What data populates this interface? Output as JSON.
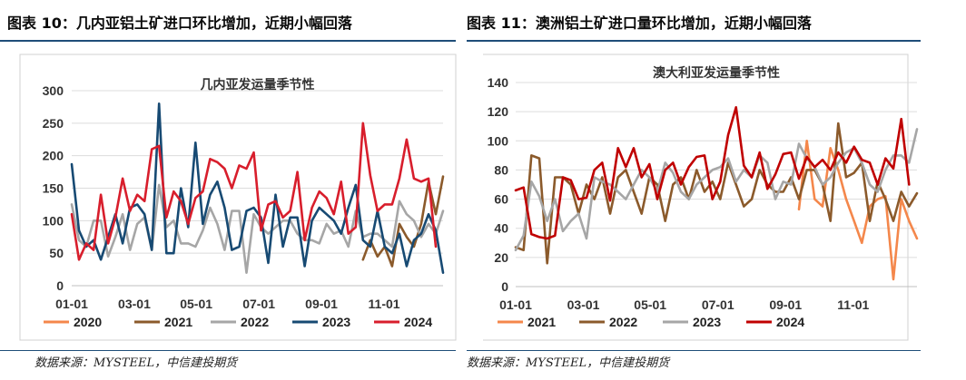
{
  "panels": [
    {
      "heading": "图表 10：几内亚铝土矿进口环比增加，近期小幅回落",
      "source": "数据来源：MYSTEEL，中信建投期货",
      "chart_data": {
        "type": "line",
        "title": "几内亚发运量季节性",
        "xlabel": "",
        "ylabel": "",
        "x_ticks": [
          "01-01",
          "03-01",
          "05-01",
          "07-01",
          "09-01",
          "11-01"
        ],
        "ylim": [
          0,
          300
        ],
        "y_ticks": [
          0,
          50,
          100,
          150,
          200,
          250,
          300
        ],
        "grid": true,
        "legend_position": "bottom",
        "series": [
          {
            "name": "2020",
            "color": "#f4874b",
            "x": [],
            "values": []
          },
          {
            "name": "2021",
            "color": "#8b5a2b",
            "x": [
              41,
              42,
              43,
              44,
              45,
              46,
              47,
              48,
              49,
              50,
              51,
              52
            ],
            "values": [
              40,
              70,
              45,
              60,
              30,
              95,
              75,
              60,
              95,
              160,
              110,
              168
            ]
          },
          {
            "name": "2022",
            "color": "#a6a6a6",
            "x": [
              1,
              2,
              3,
              4,
              5,
              6,
              7,
              8,
              9,
              10,
              11,
              12,
              13,
              14,
              15,
              16,
              17,
              18,
              19,
              20,
              21,
              22,
              23,
              24,
              25,
              26,
              27,
              28,
              29,
              30,
              31,
              32,
              33,
              34,
              35,
              36,
              37,
              38,
              39,
              40,
              41,
              42,
              43,
              44,
              45,
              46,
              47,
              48,
              49,
              50,
              51,
              52
            ],
            "values": [
              125,
              70,
              60,
              100,
              100,
              45,
              75,
              110,
              55,
              95,
              105,
              55,
              155,
              90,
              100,
              65,
              65,
              60,
              85,
              120,
              95,
              55,
              115,
              115,
              20,
              110,
              90,
              80,
              90,
              100,
              100,
              80,
              70,
              70,
              65,
              95,
              80,
              85,
              60,
              115,
              75,
              80,
              80,
              70,
              60,
              130,
              110,
              100,
              75,
              95,
              80,
              115
            ]
          },
          {
            "name": "2023",
            "color": "#174a73",
            "x": [
              1,
              2,
              3,
              4,
              5,
              6,
              7,
              8,
              9,
              10,
              11,
              12,
              13,
              14,
              15,
              16,
              17,
              18,
              19,
              20,
              21,
              22,
              23,
              24,
              25,
              26,
              27,
              28,
              29,
              30,
              31,
              32,
              33,
              34,
              35,
              36,
              37,
              38,
              39,
              40,
              41,
              42,
              43,
              44,
              45,
              46,
              47,
              48,
              49,
              50,
              51,
              52
            ],
            "values": [
              187,
              85,
              60,
              70,
              40,
              75,
              110,
              65,
              120,
              125,
              110,
              55,
              280,
              50,
              50,
              150,
              90,
              220,
              95,
              140,
              160,
              120,
              55,
              60,
              115,
              120,
              105,
              35,
              140,
              60,
              105,
              105,
              30,
              100,
              120,
              110,
              100,
              80,
              120,
              155,
              70,
              60,
              115,
              60,
              50,
              80,
              30,
              70,
              80,
              110,
              85,
              20
            ]
          },
          {
            "name": "2024",
            "color": "#d81e2c",
            "x": [
              1,
              2,
              3,
              4,
              5,
              6,
              7,
              8,
              9,
              10,
              11,
              12,
              13,
              14,
              15,
              16,
              17,
              18,
              19,
              20,
              21,
              22,
              23,
              24,
              25,
              26,
              27,
              28,
              29,
              30,
              31,
              32,
              33,
              34,
              35,
              36,
              37,
              38,
              39,
              40,
              41,
              42,
              43,
              44,
              45,
              46,
              47,
              48,
              49,
              50,
              51
            ],
            "values": [
              110,
              40,
              65,
              55,
              140,
              65,
              105,
              165,
              115,
              140,
              130,
              210,
              215,
              105,
              145,
              130,
              95,
              135,
              145,
              195,
              190,
              180,
              150,
              185,
              180,
              205,
              85,
              125,
              130,
              105,
              115,
              175,
              70,
              120,
              145,
              135,
              110,
              160,
              80,
              90,
              250,
              170,
              115,
              125,
              125,
              165,
              225,
              165,
              160,
              165,
              60
            ]
          }
        ]
      }
    },
    {
      "heading": "图表 11：澳洲铝土矿进口量环比增加，近期小幅回落",
      "source": "数据来源：MYSTEEL，中信建投期货",
      "chart_data": {
        "type": "line",
        "title": "澳大利亚发运量季节性",
        "xlabel": "",
        "ylabel": "",
        "x_ticks": [
          "01-01",
          "03-01",
          "05-01",
          "07-01",
          "09-01",
          "11-01"
        ],
        "ylim": [
          0,
          140
        ],
        "y_ticks": [
          0,
          20,
          40,
          60,
          80,
          100,
          120,
          140
        ],
        "grid": true,
        "legend_position": "bottom",
        "series": [
          {
            "name": "2021",
            "color": "#f4874b",
            "x": [
              37,
              38,
              39,
              40,
              41,
              42,
              43,
              44,
              45,
              46,
              47,
              48,
              49,
              50,
              51,
              52
            ],
            "values": [
              53,
              100,
              60,
              55,
              95,
              80,
              60,
              45,
              30,
              55,
              60,
              62,
              5,
              60,
              45,
              33
            ]
          },
          {
            "name": "2022",
            "color": "#8b5a2b",
            "x": [
              1,
              2,
              3,
              4,
              5,
              6,
              7,
              8,
              9,
              10,
              11,
              12,
              13,
              14,
              15,
              16,
              17,
              18,
              19,
              20,
              21,
              22,
              23,
              24,
              25,
              26,
              27,
              28,
              29,
              30,
              31,
              32,
              33,
              34,
              35,
              36,
              37,
              38,
              39,
              40,
              41,
              42,
              43,
              44,
              45,
              46,
              47,
              48,
              49,
              50,
              51,
              52
            ],
            "values": [
              27,
              25,
              90,
              88,
              16,
              75,
              75,
              70,
              50,
              70,
              60,
              75,
              50,
              75,
              80,
              65,
              50,
              75,
              70,
              45,
              70,
              75,
              60,
              80,
              65,
              72,
              60,
              85,
              70,
              55,
              60,
              80,
              70,
              65,
              65,
              75,
              60,
              80,
              80,
              70,
              45,
              112,
              75,
              78,
              85,
              45,
              72,
              60,
              45,
              65,
              55,
              64
            ]
          },
          {
            "name": "2023",
            "color": "#a6a6a6",
            "x": [
              1,
              2,
              3,
              4,
              5,
              6,
              7,
              8,
              9,
              10,
              11,
              12,
              13,
              14,
              15,
              16,
              17,
              18,
              19,
              20,
              21,
              22,
              23,
              24,
              25,
              26,
              27,
              28,
              29,
              30,
              31,
              32,
              33,
              34,
              35,
              36,
              37,
              38,
              39,
              40,
              41,
              42,
              43,
              44,
              45,
              46,
              47,
              48,
              49,
              50,
              51,
              52
            ],
            "values": [
              25,
              35,
              72,
              62,
              45,
              60,
              38,
              45,
              50,
              33,
              75,
              72,
              70,
              65,
              60,
              70,
              80,
              75,
              65,
              85,
              78,
              65,
              60,
              70,
              75,
              80,
              82,
              88,
              72,
              80,
              75,
              90,
              85,
              60,
              72,
              70,
              98,
              88,
              82,
              70,
              75,
              85,
              92,
              95,
              85,
              70,
              65,
              80,
              90,
              90,
              85,
              108
            ]
          },
          {
            "name": "2024",
            "color": "#c00000",
            "x": [
              1,
              2,
              3,
              4,
              5,
              6,
              7,
              8,
              9,
              10,
              11,
              12,
              13,
              14,
              15,
              16,
              17,
              18,
              19,
              20,
              21,
              22,
              23,
              24,
              25,
              26,
              27,
              28,
              29,
              30,
              31,
              32,
              33,
              34,
              35,
              36,
              37,
              38,
              39,
              40,
              41,
              42,
              43,
              44,
              45,
              46,
              47,
              48,
              49,
              50,
              51
            ],
            "values": [
              66,
              68,
              36,
              34,
              33,
              35,
              75,
              73,
              60,
              61,
              80,
              85,
              59,
              95,
              82,
              95,
              75,
              84,
              60,
              80,
              85,
              70,
              82,
              89,
              90,
              60,
              72,
              104,
              123,
              83,
              75,
              92,
              67,
              77,
              91,
              92,
              74,
              89,
              82,
              87,
              80,
              92,
              85,
              96,
              87,
              85,
              70,
              88,
              81,
              115,
              70
            ]
          }
        ]
      }
    }
  ]
}
